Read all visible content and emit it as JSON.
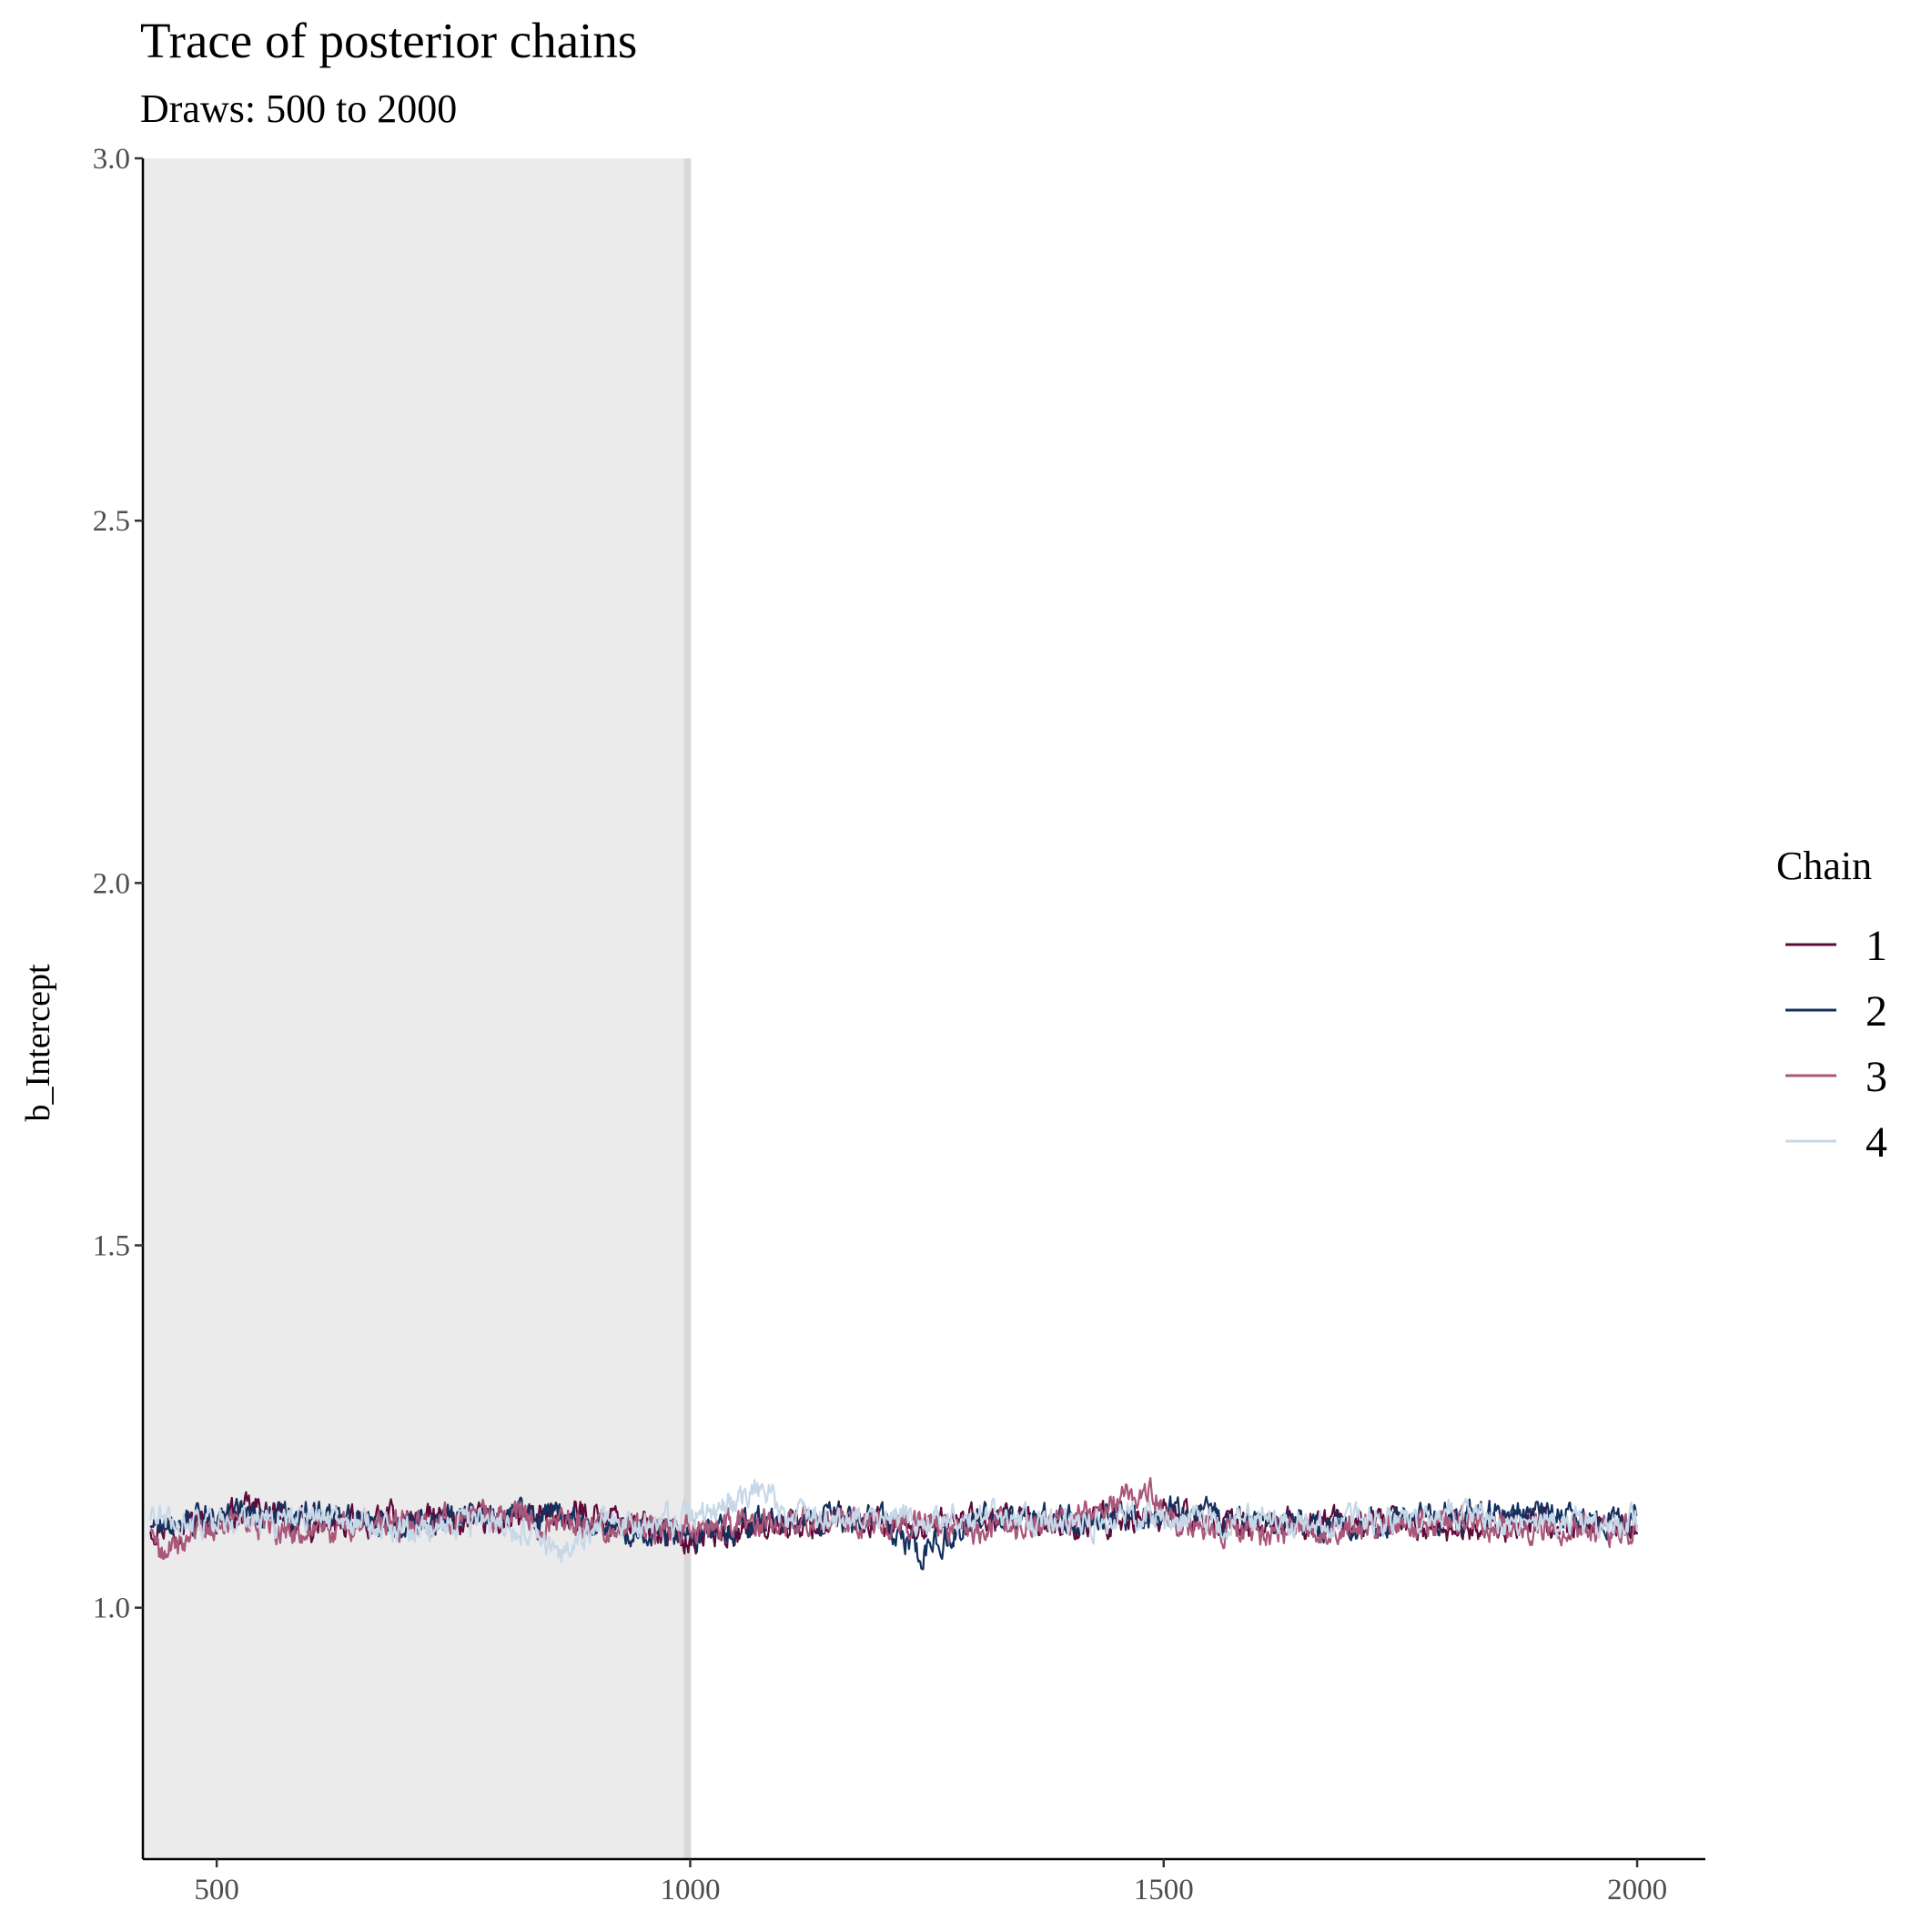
{
  "chart_data": {
    "type": "line",
    "title": "Trace of posterior chains",
    "subtitle": "Draws: 500 to 2000",
    "xlabel": "",
    "ylabel": "b_Intercept",
    "xlim": [
      422,
      2072
    ],
    "ylim": [
      0.653,
      3.0
    ],
    "x_ticks": [
      500,
      1000,
      1500,
      2000
    ],
    "x_tick_labels": [
      "500",
      "1000",
      "1500",
      "2000"
    ],
    "y_ticks": [
      1.0,
      1.5,
      2.0,
      2.5,
      3.0
    ],
    "y_tick_labels": [
      "1.0",
      "1.5",
      "2.0",
      "2.5",
      "3.0"
    ],
    "grid": false,
    "warmup_region": {
      "x_start": 422,
      "x_end": 1000,
      "fill": "#ebebeb"
    },
    "legend": {
      "title": "Chain",
      "position": "right",
      "entries": [
        "1",
        "2",
        "3",
        "4"
      ]
    },
    "series": [
      {
        "name": "1",
        "color": "#5e0b3b",
        "x_range": [
          430,
          2000
        ],
        "y_at_x": [
          [
            430,
            1.112
          ],
          [
            500,
            1.121
          ],
          [
            540,
            1.137
          ],
          [
            600,
            1.108
          ],
          [
            700,
            1.125
          ],
          [
            800,
            1.116
          ],
          [
            900,
            1.132
          ],
          [
            1000,
            1.095
          ],
          [
            1100,
            1.118
          ],
          [
            1200,
            1.112
          ],
          [
            1300,
            1.121
          ],
          [
            1400,
            1.114
          ],
          [
            1500,
            1.129
          ],
          [
            1600,
            1.113
          ],
          [
            1700,
            1.118
          ],
          [
            1800,
            1.107
          ],
          [
            1900,
            1.116
          ],
          [
            2000,
            1.104
          ]
        ]
      },
      {
        "name": "2",
        "color": "#14305e",
        "x_range": [
          430,
          2000
        ],
        "y_at_x": [
          [
            430,
            1.118
          ],
          [
            500,
            1.126
          ],
          [
            600,
            1.131
          ],
          [
            700,
            1.112
          ],
          [
            800,
            1.135
          ],
          [
            900,
            1.116
          ],
          [
            1000,
            1.099
          ],
          [
            1100,
            1.124
          ],
          [
            1200,
            1.117
          ],
          [
            1245,
            1.074
          ],
          [
            1300,
            1.126
          ],
          [
            1400,
            1.119
          ],
          [
            1500,
            1.132
          ],
          [
            1600,
            1.121
          ],
          [
            1700,
            1.112
          ],
          [
            1800,
            1.124
          ],
          [
            1900,
            1.131
          ],
          [
            2000,
            1.118
          ]
        ]
      },
      {
        "name": "3",
        "color": "#a9577a",
        "x_range": [
          430,
          2000
        ],
        "y_at_x": [
          [
            430,
            1.109
          ],
          [
            440,
            1.071
          ],
          [
            500,
            1.117
          ],
          [
            600,
            1.102
          ],
          [
            700,
            1.119
          ],
          [
            800,
            1.128
          ],
          [
            900,
            1.114
          ],
          [
            1000,
            1.106
          ],
          [
            1100,
            1.122
          ],
          [
            1200,
            1.115
          ],
          [
            1300,
            1.109
          ],
          [
            1400,
            1.118
          ],
          [
            1490,
            1.165
          ],
          [
            1500,
            1.124
          ],
          [
            1600,
            1.101
          ],
          [
            1700,
            1.115
          ],
          [
            1800,
            1.119
          ],
          [
            1900,
            1.111
          ],
          [
            2000,
            1.101
          ]
        ]
      },
      {
        "name": "4",
        "color": "#c6d8e8",
        "x_range": [
          430,
          2000
        ],
        "y_at_x": [
          [
            430,
            1.121
          ],
          [
            500,
            1.111
          ],
          [
            600,
            1.124
          ],
          [
            700,
            1.109
          ],
          [
            800,
            1.118
          ],
          [
            870,
            1.071
          ],
          [
            900,
            1.113
          ],
          [
            1000,
            1.124
          ],
          [
            1080,
            1.161
          ],
          [
            1100,
            1.126
          ],
          [
            1200,
            1.121
          ],
          [
            1300,
            1.128
          ],
          [
            1400,
            1.117
          ],
          [
            1500,
            1.124
          ],
          [
            1600,
            1.119
          ],
          [
            1700,
            1.122
          ],
          [
            1800,
            1.126
          ],
          [
            1900,
            1.114
          ],
          [
            2000,
            1.119
          ]
        ]
      }
    ]
  }
}
